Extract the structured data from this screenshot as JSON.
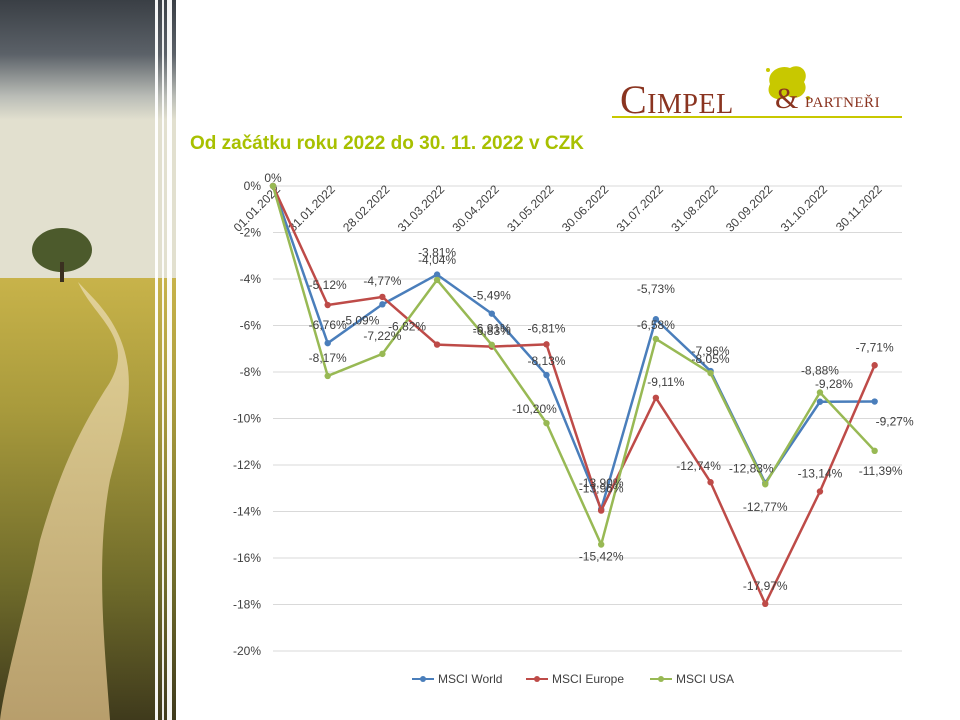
{
  "logo": {
    "brand_main": "Cimpel",
    "brand_amp": "&",
    "brand_sub": "partneři"
  },
  "title": "Od začátku roku 2022 do 30. 11. 2022 v CZK",
  "colors": {
    "title": "#a8c000",
    "msci_world": "#4a7ebb",
    "msci_europe": "#be4b48",
    "msci_usa": "#98b954"
  },
  "chart_data": {
    "type": "line",
    "title": "",
    "xlabel": "",
    "ylabel": "",
    "ylim": [
      -20,
      0
    ],
    "y_ticks": [
      "0%",
      "-2%",
      "-4%",
      "-6%",
      "-8%",
      "-10%",
      "-12%",
      "-14%",
      "-16%",
      "-18%",
      "-20%"
    ],
    "grid": true,
    "legend_position": "bottom",
    "categories": [
      "01.01.2022",
      "31.01.2022",
      "28.02.2022",
      "31.03.2022",
      "30.04.2022",
      "31.05.2022",
      "30.06.2022",
      "31.07.2022",
      "31.08.2022",
      "30.09.2022",
      "31.10.2022",
      "30.11.2022"
    ],
    "series": [
      {
        "name": "MSCI World",
        "values": [
          0,
          -6.76,
          -5.09,
          -3.81,
          -5.49,
          -8.13,
          -13.9,
          -5.73,
          -7.96,
          -12.77,
          -9.28,
          -9.27
        ],
        "labels": [
          "",
          "-6,76%",
          "-5,09%",
          "-3,81%",
          "-5,49%",
          "-8,13%",
          "-13,90%",
          "-5,73%",
          "-7,96%",
          "-12,77%",
          "-9,28%",
          "-9,27%"
        ]
      },
      {
        "name": "MSCI Europe",
        "values": [
          0,
          -5.12,
          -4.77,
          -6.82,
          -6.91,
          -6.81,
          -13.96,
          -9.11,
          -12.74,
          -17.97,
          -13.14,
          -7.71
        ],
        "labels": [
          "0%",
          "-5,12%",
          "-4,77%",
          "-6,82%",
          "-6,91%",
          "-6,81%",
          "-13,96%",
          "-9,11%",
          "-12,74%",
          "-17,97%",
          "-13,14%",
          "-7,71%"
        ]
      },
      {
        "name": "MSCI USA",
        "values": [
          0,
          -8.17,
          -7.22,
          -4.04,
          -6.83,
          -10.2,
          -15.42,
          -6.58,
          -8.05,
          -12.83,
          -8.88,
          -11.39
        ],
        "labels": [
          "",
          "-8,17%",
          "-7,22%",
          "-4,04%",
          "-6,83%",
          "-10,20%",
          "-15,42%",
          "-6,58%",
          "-8,05%",
          "-12,83%",
          "-8,88%",
          "-11,39%"
        ]
      }
    ]
  }
}
